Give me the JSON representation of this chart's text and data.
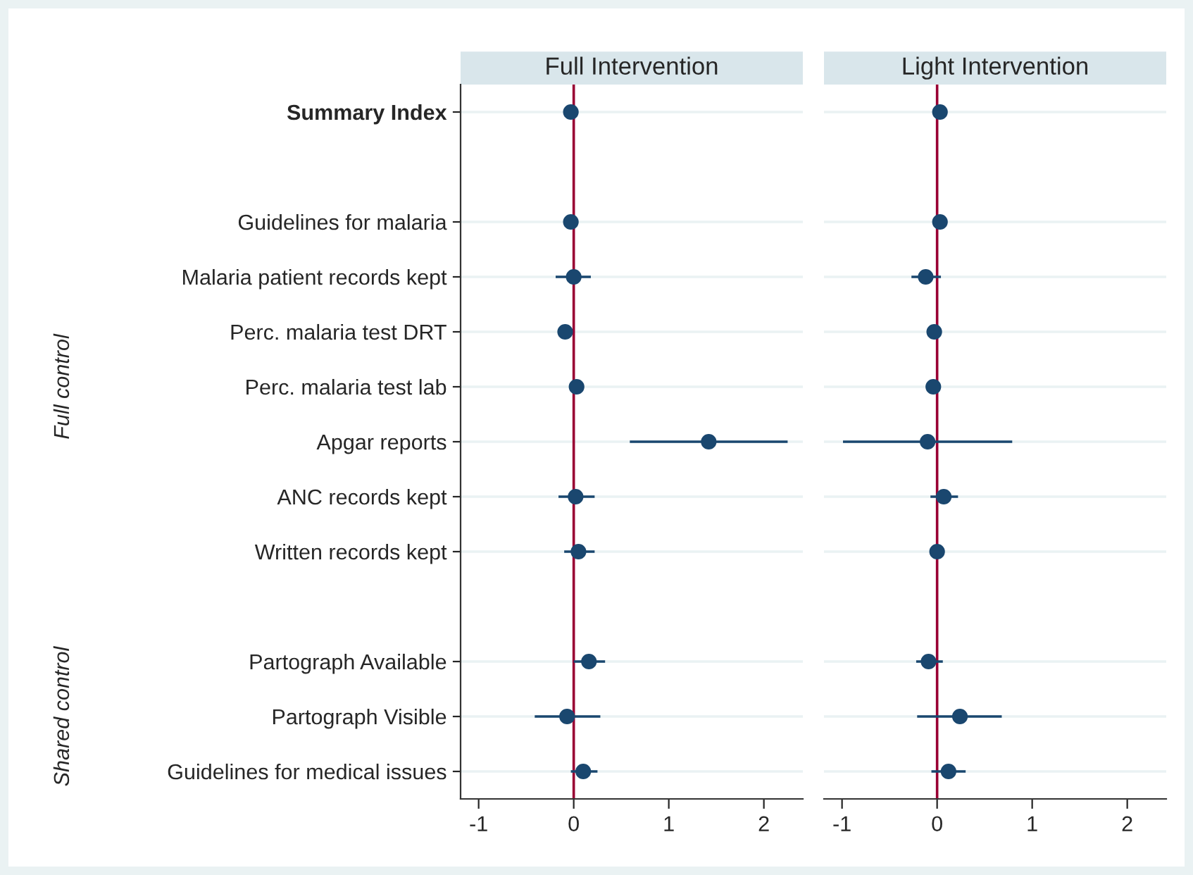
{
  "chart_data": [
    {
      "type": "scatter",
      "orientation": "horizontal",
      "title": "Full Intervention",
      "categories": [
        "Summary Index",
        null,
        "Guidelines for malaria",
        "Malaria patient records kept",
        "Perc. malaria test DRT",
        "Perc. malaria test lab",
        "Apgar reports",
        "ANC records kept",
        "Written records kept",
        null,
        "Partograph Available",
        "Partograph Visible",
        "Guidelines for medical issues"
      ],
      "series": [
        {
          "color": "#1a476f",
          "values": [
            -0.03,
            null,
            -0.03,
            0.0,
            -0.09,
            0.03,
            1.42,
            0.02,
            0.05,
            null,
            0.16,
            -0.07,
            0.1
          ],
          "errors": [
            null,
            null,
            null,
            [
              -0.19,
              0.18
            ],
            null,
            null,
            [
              0.59,
              2.25
            ],
            [
              -0.16,
              0.22
            ],
            [
              -0.1,
              0.22
            ],
            null,
            [
              0.0,
              0.33
            ],
            [
              -0.41,
              0.28
            ],
            [
              -0.03,
              0.25
            ]
          ]
        }
      ],
      "xlim": [
        -1.19,
        2.41
      ],
      "xticks": [
        {
          "value": -1,
          "label": "-1"
        },
        0,
        1,
        2
      ],
      "ref_lines": [
        {
          "axis": "x",
          "value": 0,
          "color": "#990033"
        }
      ],
      "grid": "y",
      "marker": "circle",
      "annotations": [
        "Full control",
        "Shared control"
      ]
    },
    {
      "type": "scatter",
      "orientation": "horizontal",
      "title": "Light Intervention",
      "categories": [
        null,
        null,
        null,
        null,
        null,
        null,
        null,
        null,
        null,
        null,
        null,
        null,
        null
      ],
      "series": [
        {
          "color": "#1a476f",
          "values": [
            0.03,
            null,
            0.03,
            -0.12,
            -0.03,
            -0.04,
            -0.1,
            0.07,
            0.0,
            null,
            -0.09,
            0.24,
            0.12
          ],
          "errors": [
            null,
            null,
            null,
            [
              -0.27,
              0.04
            ],
            null,
            null,
            [
              -0.99,
              0.79
            ],
            [
              -0.07,
              0.22
            ],
            null,
            null,
            [
              -0.22,
              0.06
            ],
            [
              -0.21,
              0.68
            ],
            [
              -0.06,
              0.3
            ]
          ]
        }
      ],
      "xlim": [
        -1.19,
        2.41
      ],
      "xticks": [
        {
          "value": -1,
          "label": "-1"
        },
        0,
        1,
        2
      ],
      "ref_lines": [
        {
          "axis": "x",
          "value": 0,
          "color": "#990033"
        }
      ],
      "grid": "y",
      "marker": "circle",
      "tick_labels": "x"
    }
  ]
}
